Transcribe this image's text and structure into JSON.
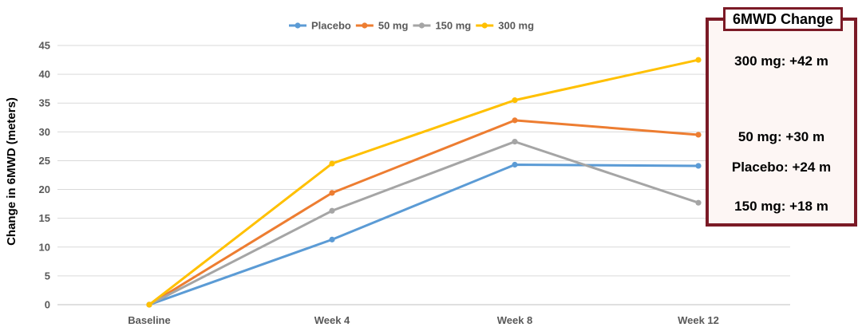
{
  "chart_data": {
    "type": "line",
    "title": "",
    "xlabel": "",
    "ylabel": "Change in 6MWD (meters)",
    "categories": [
      "Baseline",
      "Week 4",
      "Week 8",
      "Week 12"
    ],
    "ylim": [
      0,
      45
    ],
    "yticks": [
      0,
      5,
      10,
      15,
      20,
      25,
      30,
      35,
      40,
      45
    ],
    "grid": true,
    "legend_position": "top",
    "series": [
      {
        "name": "Placebo",
        "color": "#5b9bd5",
        "values": [
          0,
          11.3,
          24.3,
          24.1
        ]
      },
      {
        "name": "50 mg",
        "color": "#ed7d31",
        "values": [
          0,
          19.4,
          32.0,
          29.5
        ]
      },
      {
        "name": "150 mg",
        "color": "#a5a5a5",
        "values": [
          0,
          16.3,
          28.3,
          17.7
        ]
      },
      {
        "name": "300 mg",
        "color": "#ffc000",
        "values": [
          0,
          24.5,
          35.5,
          42.5
        ]
      }
    ]
  },
  "callout": {
    "title": "6MWD Change",
    "items": [
      "300 mg: +42 m",
      "50 mg: +30 m",
      "Placebo: +24 m",
      "150 mg: +18 m"
    ]
  }
}
